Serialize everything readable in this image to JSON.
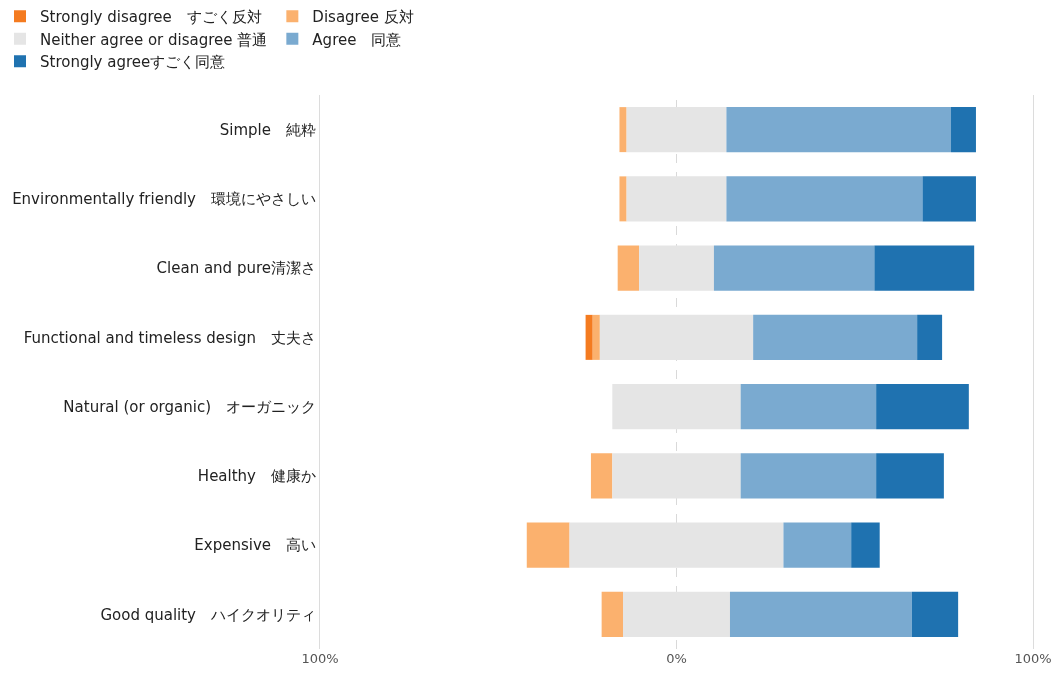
{
  "chart_data": {
    "type": "bar",
    "orientation": "horizontal",
    "categories": [
      "Simple　純粋",
      "Environmentally friendly　環境にやさしい",
      "Clean and pure清潔さ",
      "Functional and timeless design　丈夫さ",
      "Natural (or organic)　オーガニック",
      "Healthy　健康か",
      "Expensive　高い",
      "Good quality　ハイクオリティ"
    ],
    "series": [
      {
        "name": "Strongly disagree　すごく反対",
        "color": "#f47b20",
        "values": [
          null,
          null,
          null,
          2,
          null,
          null,
          null,
          null
        ],
        "base": [
          null,
          null,
          null,
          -25.5,
          null,
          null,
          null,
          null
        ]
      },
      {
        "name": "Disagree 反対",
        "color": "#fbb16e",
        "values": [
          2,
          2,
          6,
          2,
          null,
          6,
          12,
          6
        ],
        "base": [
          -16,
          -16,
          -16.5,
          -23.5,
          null,
          -24,
          -42,
          -21
        ]
      },
      {
        "name": "Neither agree or disagree 普通",
        "color": "#e5e5e5",
        "values": [
          28,
          28,
          21,
          43,
          36,
          36,
          60,
          30
        ],
        "base": [
          -14,
          -14,
          -10.5,
          -21.5,
          -18,
          -18,
          -30,
          -15
        ]
      },
      {
        "name": "Agree　同意",
        "color": "#7aaad0",
        "values": [
          63,
          55,
          45,
          46,
          38,
          38,
          19,
          51
        ],
        "base": [
          14,
          14,
          10.5,
          21.5,
          18,
          18,
          30,
          15
        ]
      },
      {
        "name": "Strongly agreeすごく同意",
        "color": "#1f72b0",
        "values": [
          7,
          15,
          28,
          7,
          26,
          19,
          8,
          13
        ],
        "base": [
          77,
          69,
          55.5,
          67.5,
          56,
          56,
          49,
          66
        ]
      }
    ],
    "xlim": [
      -100,
      100
    ],
    "xticks": [
      {
        "value": -100,
        "label": "100%"
      },
      {
        "value": 0,
        "label": "0%"
      },
      {
        "value": 100,
        "label": "100%"
      }
    ],
    "ref_lines": [
      {
        "axis": "x",
        "value": 0,
        "color": "#d9d9d9",
        "line_style": "dashed"
      }
    ],
    "legend": "top left"
  }
}
